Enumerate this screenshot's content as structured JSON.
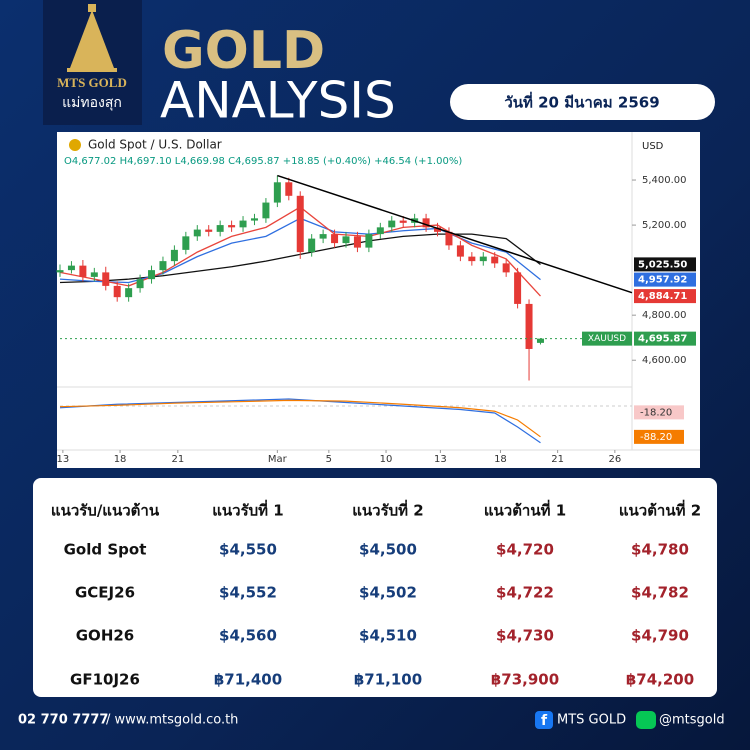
{
  "header": {
    "brand": "MTS GOLD",
    "brand_thai": "แม่ทองสุก",
    "title_line1": "GOLD",
    "title_line2": "ANALYSIS",
    "date": "วันที่ 20 มีนาคม 2569"
  },
  "chart_data": {
    "type": "candlestick",
    "title": "Gold Spot / U.S. Dollar",
    "legend_text": "O4,677.02 H4,697.10 L4,669.98 C4,695.87 +18.85 (+0.40%) +46.54 (+1.00%)",
    "currency": "USD",
    "xlim": [
      0,
      100
    ],
    "xticks": [
      {
        "value": 0.5,
        "label": "13"
      },
      {
        "value": 10.5,
        "label": "18"
      },
      {
        "value": 20.6,
        "label": "21"
      },
      {
        "value": 38,
        "label": "Mar"
      },
      {
        "value": 47,
        "label": "5"
      },
      {
        "value": 57,
        "label": "10"
      },
      {
        "value": 66.5,
        "label": "13"
      },
      {
        "value": 77,
        "label": "18"
      },
      {
        "value": 87,
        "label": "21"
      },
      {
        "value": 97,
        "label": "26"
      }
    ],
    "ylim": [
      4490,
      5600
    ],
    "yticks": [
      {
        "value": 4600,
        "label": "4,600.00"
      },
      {
        "value": 4800,
        "label": "4,800.00"
      },
      {
        "value": 5200,
        "label": "5,200.00"
      },
      {
        "value": 5400,
        "label": "5,400.00"
      }
    ],
    "x": [
      0,
      2,
      4,
      6,
      8,
      10,
      12,
      14,
      16,
      18,
      20,
      22,
      24,
      26,
      28,
      30,
      32,
      34,
      36,
      38,
      40,
      42,
      44,
      46,
      48,
      50,
      52,
      54,
      56,
      58,
      60,
      62,
      64,
      66,
      68,
      70,
      72,
      74,
      76,
      78,
      80,
      82,
      84
    ],
    "open": [
      4990,
      5000,
      5020,
      4970,
      4990,
      4930,
      4880,
      4920,
      4960,
      5000,
      5040,
      5090,
      5150,
      5180,
      5170,
      5200,
      5190,
      5220,
      5230,
      5300,
      5390,
      5330,
      5080,
      5140,
      5160,
      5120,
      5150,
      5100,
      5160,
      5190,
      5220,
      5210,
      5230,
      5190,
      5170,
      5110,
      5060,
      5040,
      5060,
      5030,
      4990,
      4850,
      4677.02
    ],
    "high": [
      5025,
      5040,
      5045,
      5010,
      5015,
      4950,
      4940,
      4980,
      5020,
      5060,
      5110,
      5170,
      5200,
      5200,
      5220,
      5220,
      5240,
      5250,
      5320,
      5420,
      5410,
      5350,
      5160,
      5180,
      5180,
      5170,
      5170,
      5180,
      5210,
      5240,
      5240,
      5250,
      5250,
      5210,
      5190,
      5130,
      5080,
      5080,
      5080,
      5050,
      5010,
      4870,
      4697.1
    ],
    "low": [
      4970,
      4985,
      4950,
      4950,
      4910,
      4860,
      4860,
      4900,
      4940,
      4980,
      5020,
      5070,
      5130,
      5150,
      5150,
      5170,
      5170,
      5200,
      5210,
      5280,
      5310,
      5050,
      5060,
      5120,
      5100,
      5100,
      5080,
      5080,
      5140,
      5170,
      5190,
      5190,
      5170,
      5150,
      5090,
      5040,
      5020,
      5020,
      5010,
      4970,
      4830,
      4510,
      4669.98
    ],
    "close": [
      5000,
      5020,
      4970,
      4990,
      4930,
      4880,
      4920,
      4960,
      5000,
      5040,
      5090,
      5150,
      5180,
      5170,
      5200,
      5190,
      5220,
      5230,
      5300,
      5390,
      5330,
      5080,
      5140,
      5160,
      5120,
      5150,
      5100,
      5160,
      5190,
      5220,
      5210,
      5230,
      5190,
      5170,
      5110,
      5060,
      5040,
      5060,
      5030,
      4990,
      4850,
      4650,
      4695.87
    ],
    "up_color": "#2e9e4f",
    "down_color": "#e53935",
    "overlays": [
      {
        "color": "#111111",
        "x": [
          0,
          6,
          12,
          18,
          24,
          30,
          36,
          42,
          48,
          54,
          60,
          66,
          72,
          78,
          84
        ],
        "values": [
          4945,
          4950,
          4960,
          4975,
          4995,
          5015,
          5040,
          5070,
          5100,
          5130,
          5150,
          5160,
          5160,
          5140,
          5025
        ]
      },
      {
        "color": "#2f6fe0",
        "x": [
          0,
          6,
          12,
          18,
          24,
          30,
          36,
          42,
          48,
          54,
          60,
          66,
          72,
          78,
          84
        ],
        "values": [
          4960,
          4950,
          4945,
          4985,
          5060,
          5120,
          5150,
          5230,
          5170,
          5160,
          5175,
          5185,
          5120,
          5080,
          4958
        ]
      },
      {
        "color": "#e8453c",
        "x": [
          0,
          6,
          12,
          18,
          24,
          30,
          36,
          42,
          48,
          54,
          60,
          66,
          72,
          78,
          84
        ],
        "values": [
          4990,
          4960,
          4930,
          4990,
          5080,
          5150,
          5190,
          5280,
          5160,
          5150,
          5190,
          5200,
          5110,
          5050,
          4885
        ]
      }
    ],
    "trendline": {
      "color": "#000000",
      "x": [
        38,
        100
      ],
      "values": [
        5420,
        4900
      ]
    },
    "price_labels": [
      {
        "value": 5025.5,
        "label": "5,025.50",
        "color": "#111111"
      },
      {
        "value": 4957.92,
        "label": "4,957.92",
        "color": "#2f6fe0"
      },
      {
        "value": 4884.71,
        "label": "4,884.71",
        "color": "#e53935"
      },
      {
        "name": "XAUUSD",
        "value": 4695.87,
        "label": "4,695.87",
        "color": "#2e9e4f"
      }
    ],
    "macd": {
      "ylim": [
        -120,
        40
      ],
      "x": [
        0,
        10,
        20,
        30,
        40,
        50,
        60,
        70,
        76,
        80,
        84
      ],
      "series": [
        {
          "color": "#2f6fe0",
          "values": [
            -5,
            5,
            10,
            15,
            20,
            10,
            0,
            -10,
            -20,
            -60,
            -105
          ]
        },
        {
          "color": "#f57c00",
          "values": [
            -2,
            2,
            8,
            12,
            16,
            14,
            5,
            -5,
            -15,
            -40,
            -88
          ]
        }
      ],
      "labels": [
        {
          "value": -18.2,
          "label": "-18.20",
          "color": "#f8c8c8",
          "text_color": "#333333"
        },
        {
          "value": -88.2,
          "label": "-88.20",
          "color": "#f57c00",
          "text_color": "#ffffff"
        }
      ]
    }
  },
  "table": {
    "header": [
      "แนวรับ/แนวต้าน",
      "แนวรับที่ 1",
      "แนวรับที่ 2",
      "แนวต้านที่ 1",
      "แนวต้านที่ 2"
    ],
    "rows": [
      [
        "Gold Spot",
        "$4,550",
        "$4,500",
        "$4,720",
        "$4,780"
      ],
      [
        "GCEJ26",
        "$4,552",
        "$4,502",
        "$4,722",
        "$4,782"
      ],
      [
        "GOH26",
        "$4,560",
        "$4,510",
        "$4,730",
        "$4,790"
      ],
      [
        "GF10J26",
        "฿71,400",
        "฿71,100",
        "฿73,900",
        "฿74,200"
      ]
    ]
  },
  "footer": {
    "phone": "02 770 7777",
    "website": "/ www.mtsgold.co.th",
    "facebook": "MTS GOLD",
    "line": "@mtsgold"
  }
}
